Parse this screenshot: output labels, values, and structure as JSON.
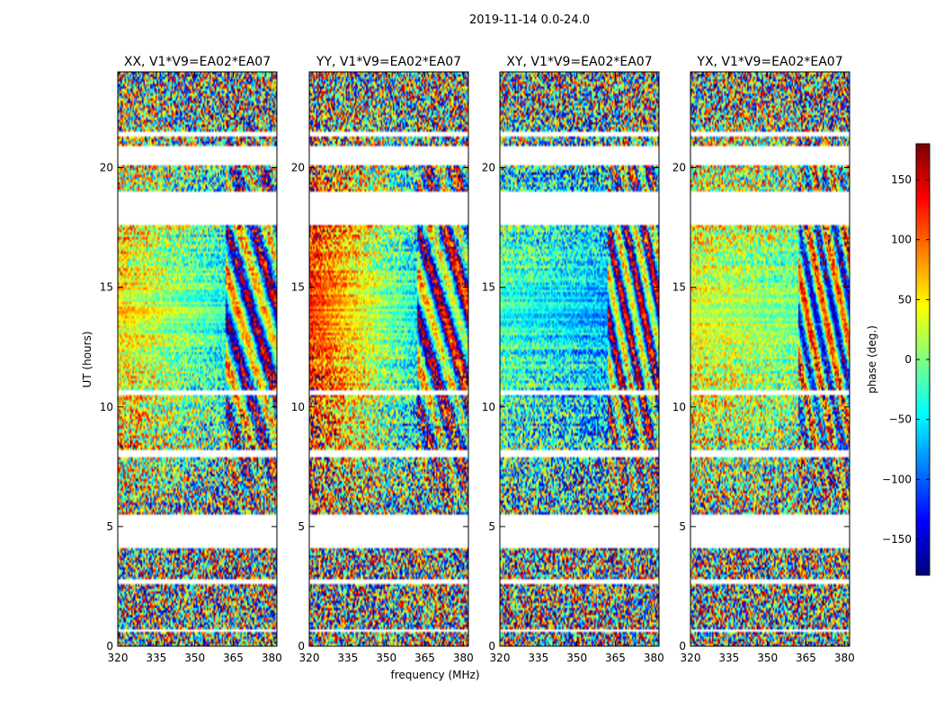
{
  "figure_title": "2019-11-14 0.0-24.0",
  "chart_data": {
    "type": "heatmap",
    "title": "2019-11-14 0.0-24.0",
    "xlabel": "frequency (MHz)",
    "ylabel": "UT (hours)",
    "xlim": [
      320,
      382
    ],
    "ylim": [
      0,
      24
    ],
    "x_ticks": [
      320,
      335,
      350,
      365,
      380
    ],
    "y_ticks": [
      0,
      5,
      10,
      15,
      20
    ],
    "panels": [
      {
        "title": "XX, V1*V9=EA02*EA07",
        "base_phase": 55,
        "slope": -2.2,
        "fringe": 0.6
      },
      {
        "title": "YY, V1*V9=EA02*EA07",
        "base_phase": 120,
        "slope": -4.0,
        "fringe": 0.6
      },
      {
        "title": "XY, V1*V9=EA02*EA07",
        "base_phase": -20,
        "slope": -1.2,
        "fringe": 0.9
      },
      {
        "title": "YX, V1*V9=EA02*EA07",
        "base_phase": 40,
        "slope": -1.0,
        "fringe": 0.9
      }
    ],
    "data_gaps_hours": [
      [
        0.0,
        0.05
      ],
      [
        0.6,
        0.7
      ],
      [
        2.65,
        2.75
      ],
      [
        4.1,
        5.5
      ],
      [
        7.9,
        8.15
      ],
      [
        10.55,
        10.65
      ],
      [
        17.65,
        19.0
      ],
      [
        20.15,
        20.85
      ],
      [
        21.35,
        21.45
      ]
    ],
    "colorbar": {
      "label": "phase (deg.)",
      "range": [
        -180,
        180
      ],
      "ticks": [
        150,
        100,
        50,
        0,
        -50,
        -100,
        -150
      ],
      "tick_labels": [
        "150",
        "100",
        "50",
        "0",
        "−50",
        "−100",
        "−150"
      ],
      "colormap": "jet"
    }
  }
}
